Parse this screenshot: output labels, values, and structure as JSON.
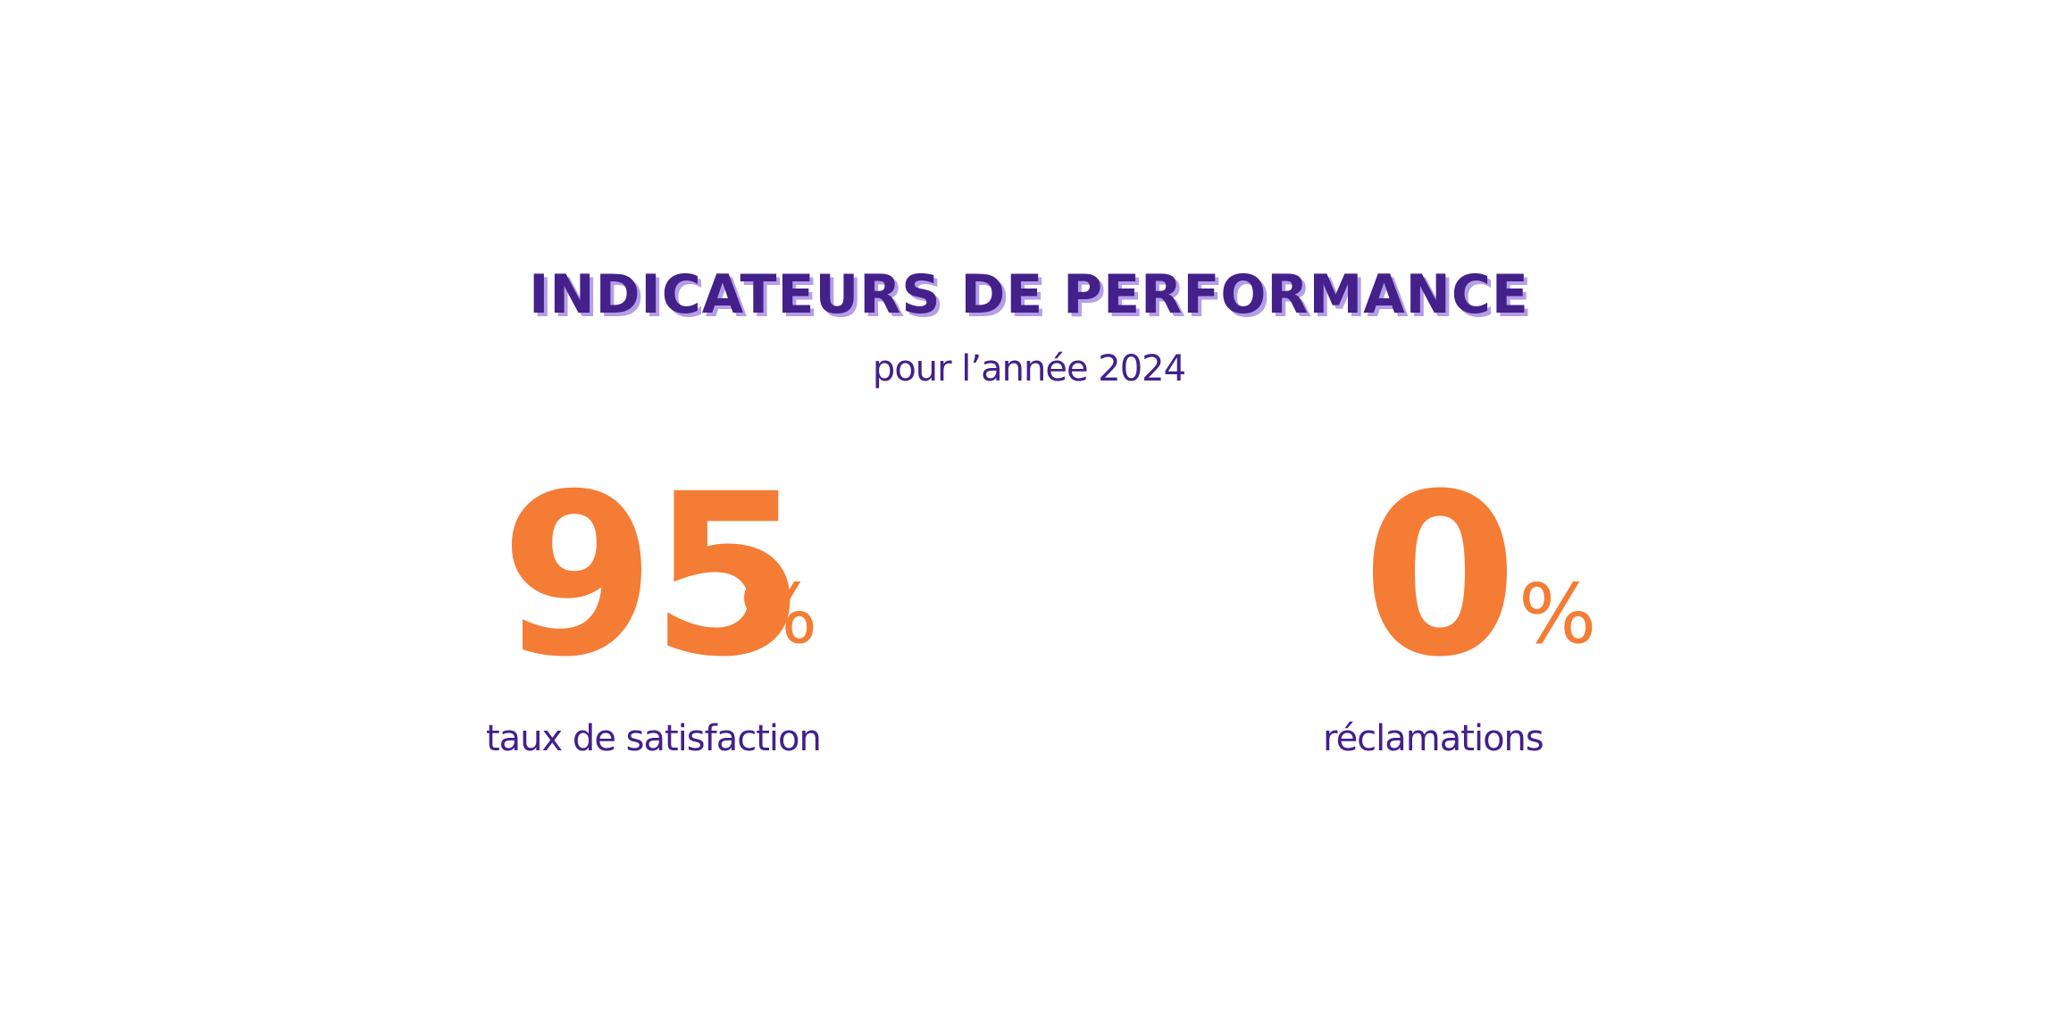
{
  "header": {
    "title": "INDICATEURS DE PERFORMANCE",
    "subtitle": "pour l’année 2024"
  },
  "kpis": [
    {
      "value": "95",
      "unit": "%",
      "label": "taux de satisfaction"
    },
    {
      "value": "0",
      "unit": "%",
      "label": "réclamations"
    }
  ],
  "colors": {
    "primary": "#43208a",
    "accent": "#f47c35",
    "title_shadow": "#b59ee8",
    "background": "#ffffff"
  }
}
